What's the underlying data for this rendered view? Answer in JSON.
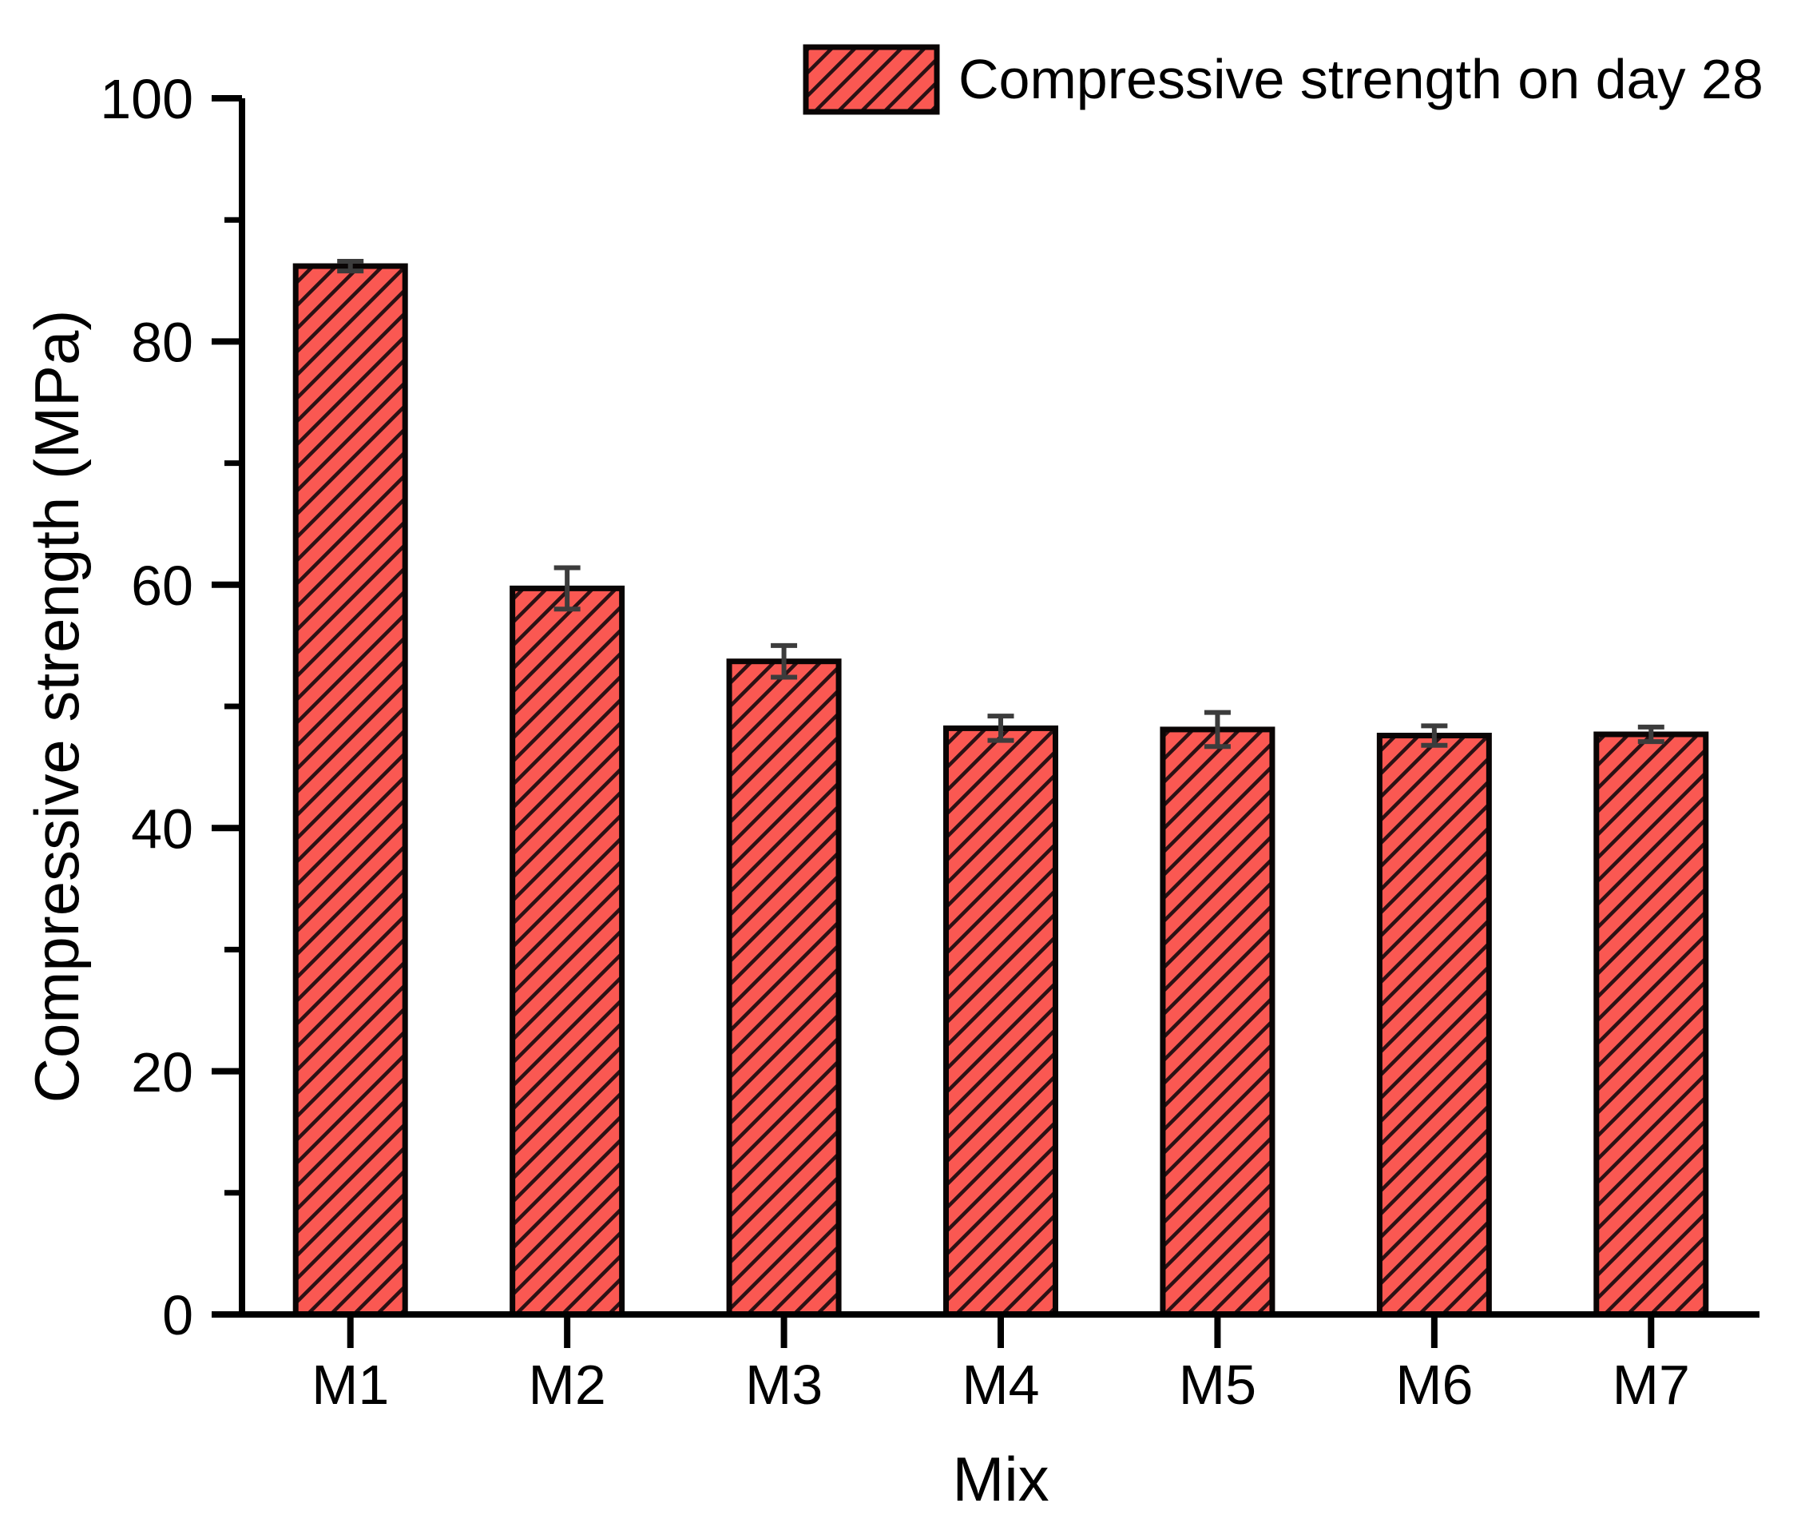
{
  "chart_data": {
    "type": "bar",
    "title": "",
    "xlabel": "Mix",
    "ylabel": "Compressive strength (MPa)",
    "categories": [
      "M1",
      "M2",
      "M3",
      "M4",
      "M5",
      "M6",
      "M7"
    ],
    "series": [
      {
        "name": "Compressive strength on day 28",
        "values": [
          86.2,
          59.7,
          53.7,
          48.2,
          48.1,
          47.6,
          47.7
        ],
        "errors": [
          0.4,
          1.7,
          1.3,
          1.0,
          1.4,
          0.8,
          0.6
        ]
      }
    ],
    "ylim": [
      0,
      100
    ],
    "y_major_ticks": [
      0,
      20,
      40,
      60,
      80,
      100
    ],
    "y_minor_step": 10,
    "grid": false,
    "legend_position": "top-right",
    "bar_style": {
      "fill_color": "#FA5852",
      "hatch_pattern": "diagonal-forward",
      "hatch_color": "#2B1114",
      "edge_color": "#0A0505",
      "error_bar_color": "#3C3C3C",
      "axis_color": "#000000"
    }
  }
}
